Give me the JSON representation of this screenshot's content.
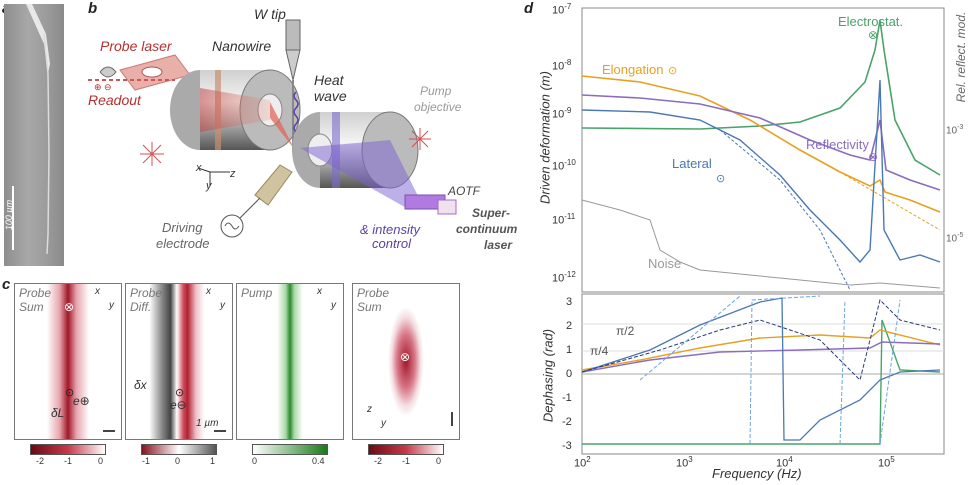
{
  "panels": {
    "a": "a",
    "b": "b",
    "c": "c",
    "d": "d"
  },
  "panel_a": {
    "scale": "100 µm"
  },
  "panel_b": {
    "probe_laser": "Probe laser",
    "readout": "Readout",
    "readout_signs": "⊕ ⊖",
    "nanowire": "Nanowire",
    "w_tip": "W tip",
    "heat_wave_1": "Heat",
    "heat_wave_2": "wave",
    "pump_1": "Pump",
    "pump_2": "objective",
    "aotf": "AOTF",
    "intensity": "& intensity",
    "control": "control",
    "supercont_1": "Super-",
    "supercont_2": "continuum",
    "supercont_3": "laser",
    "driving_1": "Driving",
    "driving_2": "electrode",
    "ax_x": "x",
    "ax_y": "y",
    "ax_z": "z"
  },
  "panel_c": {
    "maps": [
      {
        "title_1": "Probe",
        "title_2": "Sum",
        "ax1": "x",
        "ax2": "y"
      },
      {
        "title_1": "Probe",
        "title_2": "Diff.",
        "ax1": "x",
        "ax2": "y"
      },
      {
        "title_1": "Pump",
        "title_2": "",
        "ax1": "x",
        "ax2": "y"
      },
      {
        "title_1": "Probe",
        "title_2": "Sum",
        "ax1": "z",
        "ax2": "y"
      }
    ],
    "dL": "δL",
    "eplus": "e⊕",
    "dx": "δx",
    "eminus": "e⊖",
    "scalebar": "1 µm",
    "colorbars": [
      {
        "ticks": [
          "-2",
          "-1",
          "0"
        ],
        "colors": [
          "#6b0a14",
          "#c43a4a",
          "#ffffff"
        ]
      },
      {
        "ticks": [
          "-1",
          "0",
          "1"
        ],
        "colors": [
          "#8b1020",
          "#ffffff",
          "#555555"
        ]
      },
      {
        "ticks": [
          "0",
          "0.4"
        ],
        "colors": [
          "#ffffff",
          "#1a7a1a"
        ]
      },
      {
        "ticks": [
          "-2",
          "-1",
          "0"
        ],
        "colors": [
          "#6b0a14",
          "#c43a4a",
          "#ffffff"
        ]
      }
    ]
  },
  "panel_d": {
    "ylabel_top": "Driven deformation (m)",
    "ylabel_right": "Rel. reflect. mod.",
    "ylabel_bottom": "Dephasing (rad)",
    "xlabel": "Frequency (Hz)",
    "x_ticks": [
      "10",
      "10",
      "10",
      "10"
    ],
    "x_exp": [
      "2",
      "3",
      "4",
      "5"
    ],
    "y_top_ticks": [
      "10",
      "10",
      "10",
      "10",
      "10",
      "10"
    ],
    "y_top_exp": [
      "-7",
      "-8",
      "-9",
      "-10",
      "-11",
      "-12"
    ],
    "y_right_ticks": [
      "10",
      "10"
    ],
    "y_right_exp": [
      "-3",
      "-5"
    ],
    "y_bottom_ticks": [
      "3",
      "2",
      "1",
      "0",
      "-1",
      "-2",
      "-3"
    ],
    "series": [
      {
        "name": "Electrostat.",
        "color": "#4aa36a"
      },
      {
        "name": "Elongation",
        "color": "#e8a020"
      },
      {
        "name": "Reflectivity",
        "color": "#8a6cc0"
      },
      {
        "name": "Lateral",
        "color": "#4a78b5"
      },
      {
        "name": "Noise",
        "color": "#9a9a9a"
      }
    ],
    "ann_pi2": "π/2",
    "ann_pi4": "π/4"
  }
}
